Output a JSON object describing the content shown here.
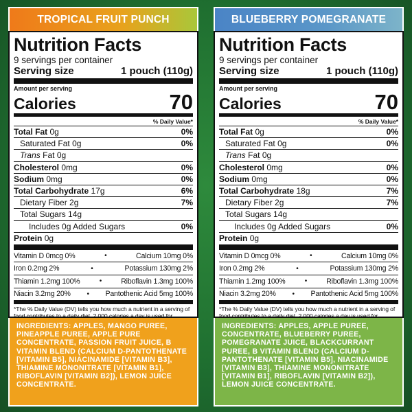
{
  "panels": [
    {
      "flavor": "TROPICAL FRUIT PUNCH",
      "facts": {
        "title": "Nutrition Facts",
        "servings": "9 servings per container",
        "serving_size_label": "Serving size",
        "serving_size_value": "1 pouch (110g)",
        "amount_per": "Amount per serving",
        "calories_label": "Calories",
        "calories_value": "70",
        "dv_header": "% Daily Value*",
        "rows": [
          {
            "label": "Total Fat",
            "amount": "0g",
            "pct": "0%"
          },
          {
            "label": "Saturated Fat",
            "amount": "0g",
            "pct": "0%"
          },
          {
            "label": "Trans",
            "amount": "Fat 0g",
            "pct": ""
          },
          {
            "label": "Cholesterol",
            "amount": "0mg",
            "pct": "0%"
          },
          {
            "label": "Sodium",
            "amount": "0mg",
            "pct": "0%"
          },
          {
            "label": "Total Carbohydrate",
            "amount": "17g",
            "pct": "6%"
          },
          {
            "label": "Dietary Fiber",
            "amount": "2g",
            "pct": "7%"
          },
          {
            "label": "Total Sugars",
            "amount": "14g",
            "pct": ""
          },
          {
            "label": "Includes",
            "amount": "0g Added Sugars",
            "pct": "0%"
          },
          {
            "label": "Protein",
            "amount": "0g",
            "pct": ""
          }
        ],
        "vitamins": [
          {
            "left": "Vitamin D 0mcg 0%",
            "right": "Calcium 10mg 0%"
          },
          {
            "left": "Iron 0.2mg 2%",
            "right": "Potassium 130mg 2%"
          },
          {
            "left": "Thiamin 1.2mg 100%",
            "right": "Riboflavin 1.3mg 100%"
          },
          {
            "left": "Niacin 3.2mg 20%",
            "right": "Pantothenic Acid 5mg 100%"
          }
        ],
        "footnote": "*The % Daily Value (DV) tells you how much a nutrient in a serving of food contributes to a daily diet. 2,000 calories a day is used for general nutrition advice."
      },
      "ingredients": "INGREDIENTS: APPLES, MANGO PUREE, PINEAPPLE PUREE, APPLE PURE CONCENTRATE, PASSION FRUIT JUICE, B VITAMIN BLEND (CALCIUM D-PANTOTHENATE [VITAMIN B5], NIACINAMIDE [VITAMIN B3], THIAMINE MONONITRATE [VITAMIN B1], RIBOFLAVIN [VITAMIN B2]), LEMON JUICE CONCENTRATE."
    },
    {
      "flavor": "BLUEBERRY POMEGRANATE",
      "facts": {
        "title": "Nutrition Facts",
        "servings": "9 servings per container",
        "serving_size_label": "Serving size",
        "serving_size_value": "1 pouch (110g)",
        "amount_per": "Amount per serving",
        "calories_label": "Calories",
        "calories_value": "70",
        "dv_header": "% Daily Value*",
        "rows": [
          {
            "label": "Total Fat",
            "amount": "0g",
            "pct": "0%"
          },
          {
            "label": "Saturated Fat",
            "amount": "0g",
            "pct": "0%"
          },
          {
            "label": "Trans",
            "amount": "Fat 0g",
            "pct": ""
          },
          {
            "label": "Cholesterol",
            "amount": "0mg",
            "pct": "0%"
          },
          {
            "label": "Sodium",
            "amount": "0mg",
            "pct": "0%"
          },
          {
            "label": "Total Carbohydrate",
            "amount": "18g",
            "pct": "7%"
          },
          {
            "label": "Dietary Fiber",
            "amount": "2g",
            "pct": "7%"
          },
          {
            "label": "Total Sugars",
            "amount": "14g",
            "pct": ""
          },
          {
            "label": "Includes",
            "amount": "0g Added Sugars",
            "pct": "0%"
          },
          {
            "label": "Protein",
            "amount": "0g",
            "pct": ""
          }
        ],
        "vitamins": [
          {
            "left": "Vitamin D 0mcg 0%",
            "right": "Calcium 10mg 0%"
          },
          {
            "left": "Iron 0.2mg 2%",
            "right": "Potassium 130mg 2%"
          },
          {
            "left": "Thiamin 1.2mg 100%",
            "right": "Riboflavin 1.3mg 100%"
          },
          {
            "left": "Niacin 3.2mg 20%",
            "right": "Pantothenic Acid 5mg 100%"
          }
        ],
        "footnote": "*The % Daily Value (DV) tells you how much a nutrient in a serving of food contributes to a daily diet. 2,000 calories a day is used for general nutrition advice."
      },
      "ingredients": "INGREDIENTS: APPLES, APPLE PUREE, CONCENTRATE, BLUEBERRY PUREE, POMEGRANATE JUICE, BLACKCURRANT PUREE, B VITAMIN BLEND (CALCIUM D-PANTOTHENATE [VITAMIN B5], NIACINAMIDE [VITAMIN B3], THIAMINE MONONITRATE [VITAMIN B1], RIBOFLAVIN [VITAMIN B2]), LEMON JUICE CONCENTRATE."
    }
  ]
}
